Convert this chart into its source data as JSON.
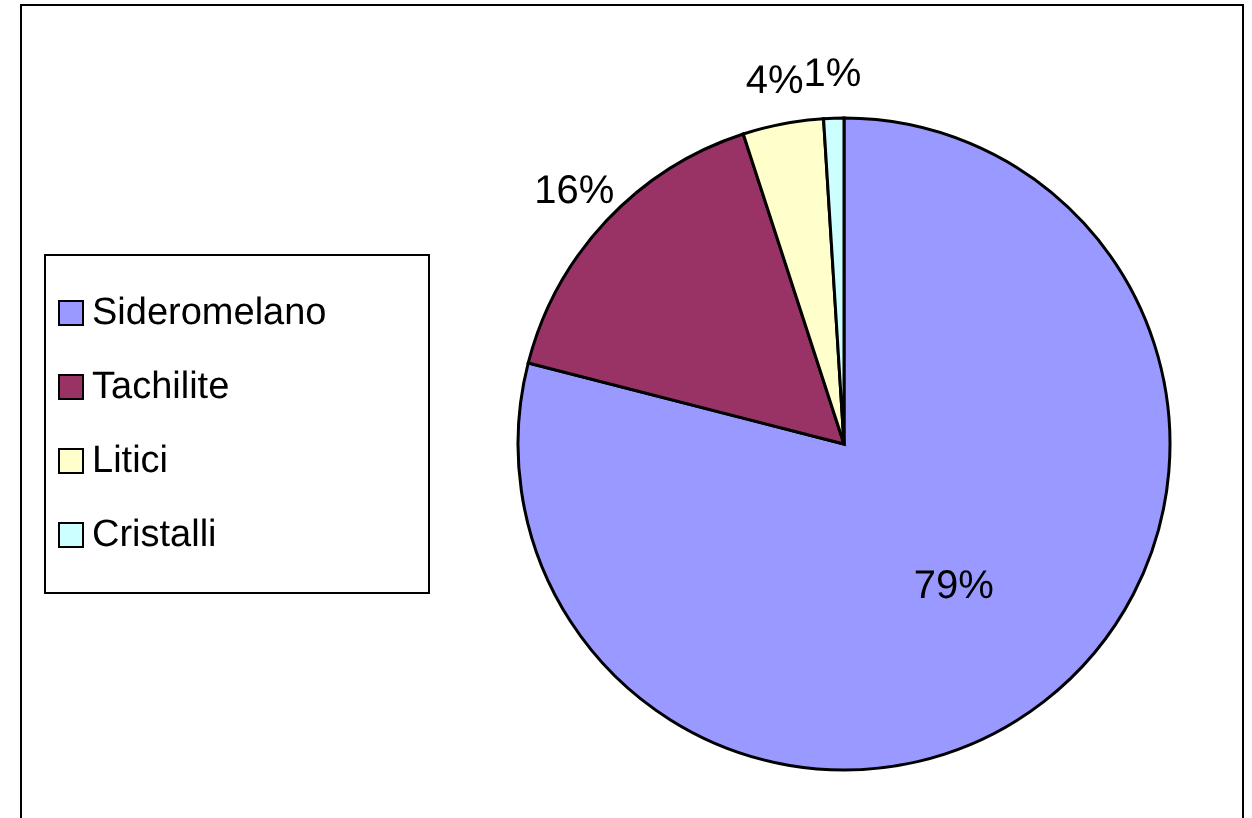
{
  "chart_data": {
    "type": "pie",
    "categories": [
      "Sideromelano",
      "Tachilite",
      "Litici",
      "Cristalli"
    ],
    "values": [
      79,
      16,
      4,
      1
    ],
    "colors": [
      "#9999ff",
      "#993366",
      "#ffffcc",
      "#ccffff"
    ],
    "value_labels": [
      "79%",
      "16%",
      "4%",
      "1%"
    ],
    "legend": "left"
  }
}
